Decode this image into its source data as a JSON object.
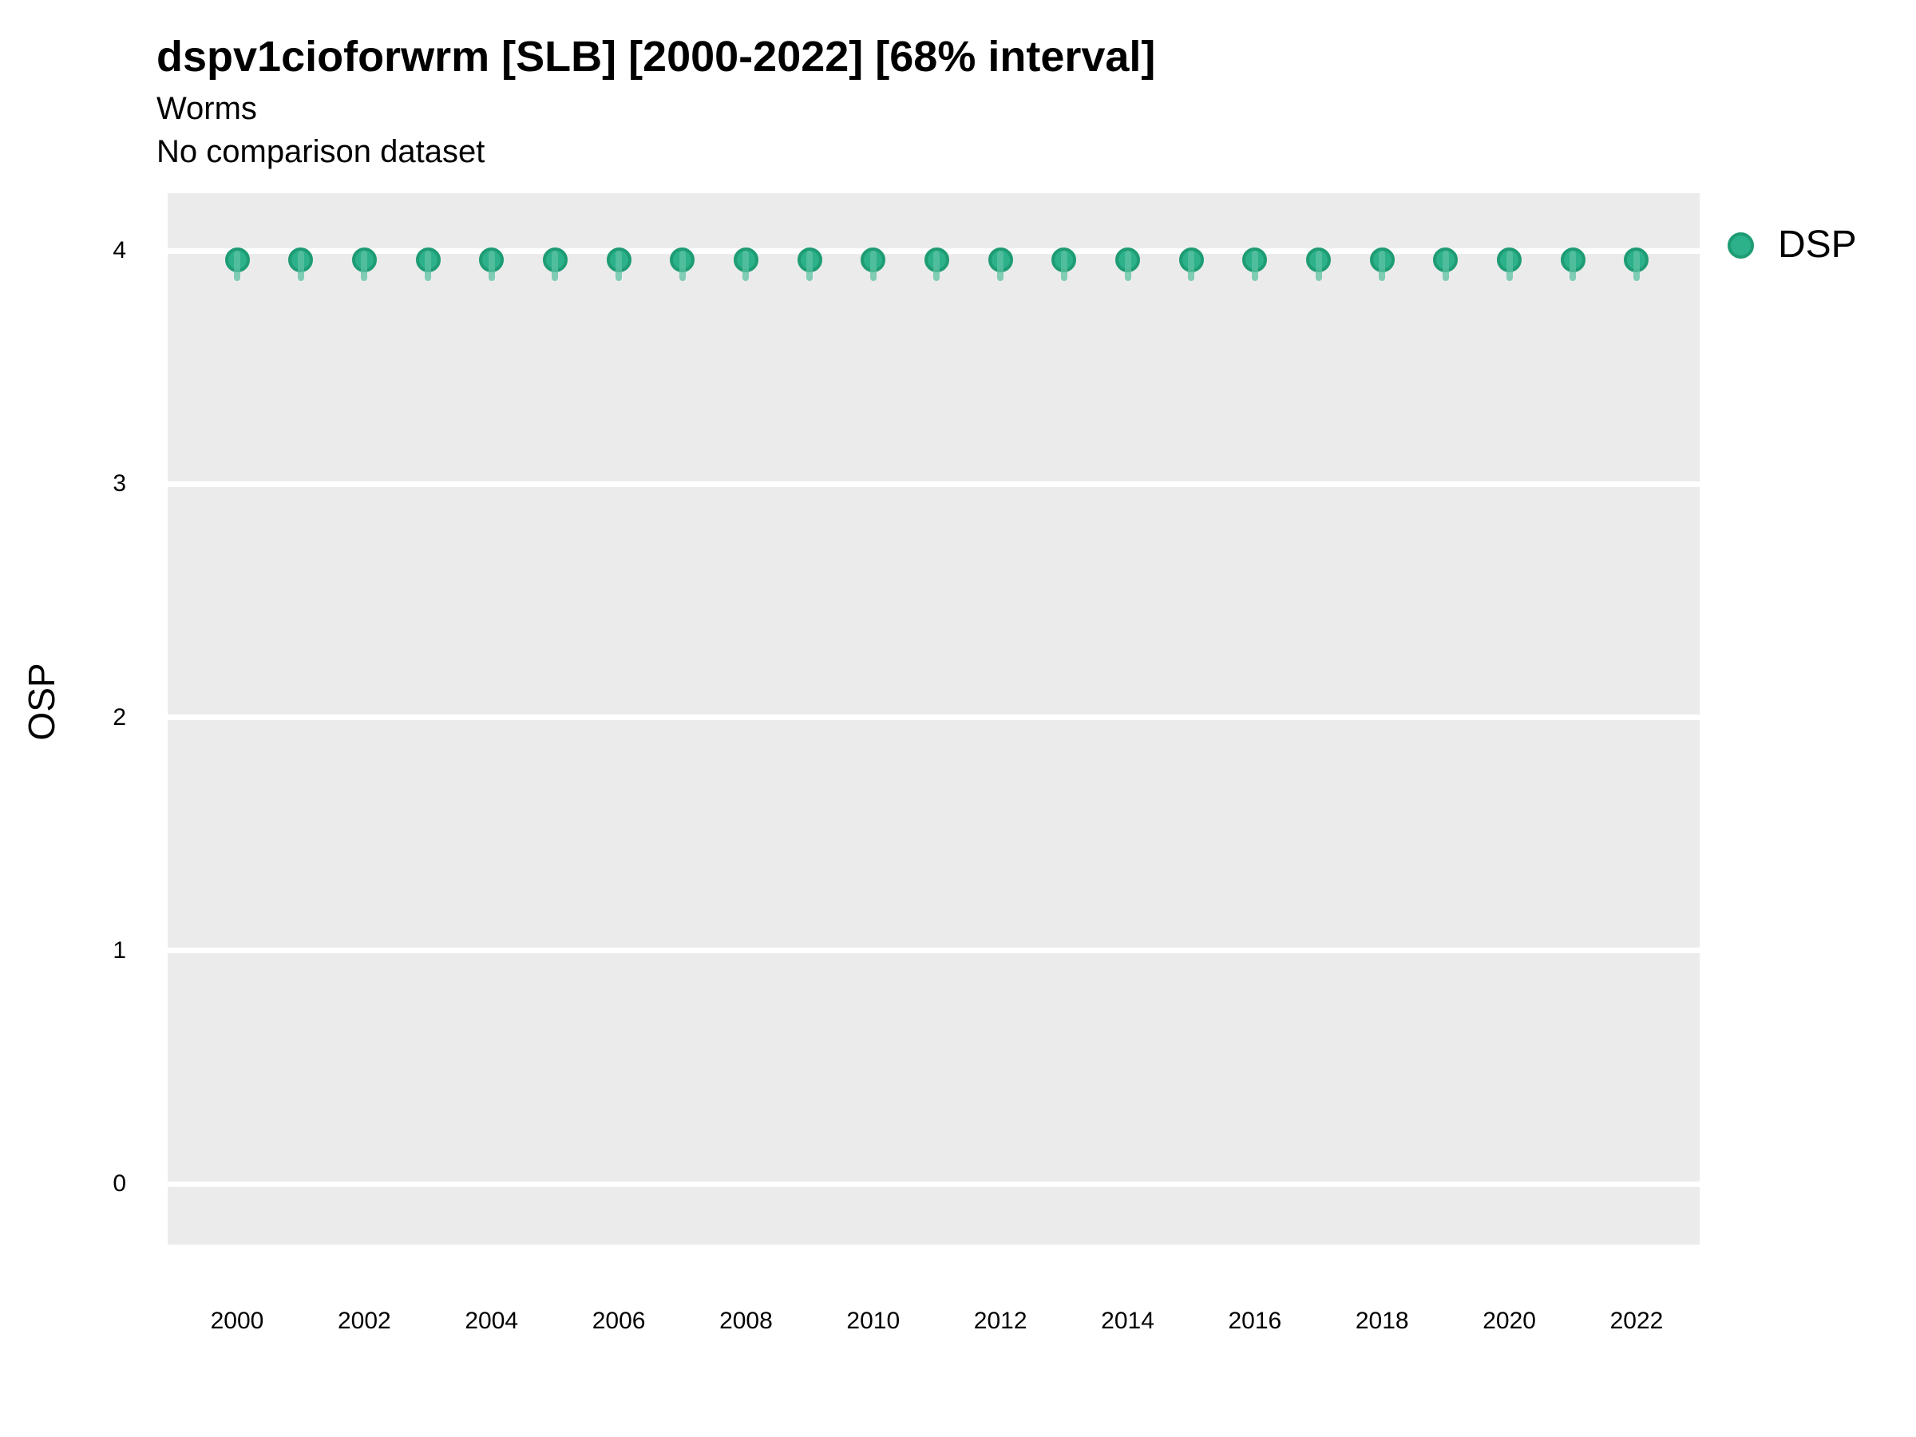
{
  "header": {
    "title": "dspv1cioforwrm [SLB] [2000-2022] [68% interval]",
    "subtitle": "Worms",
    "comparison_note": "No comparison dataset"
  },
  "colors": {
    "panel_bg": "#EBEBEB",
    "gridline": "#FFFFFF",
    "point_fill": "#2CB18A",
    "point_stroke": "#1E9C74",
    "interval_line": "rgba(92,194,161,0.75)",
    "text": "#000000"
  },
  "chart_data": {
    "type": "scatter",
    "title": "dspv1cioforwrm [SLB] [2000-2022] [68% interval]",
    "subtitle": "Worms",
    "annotation": "No comparison dataset",
    "xlabel": "",
    "ylabel": "OSP",
    "legend_position": "top-right",
    "grid": "horizontal-major-only",
    "x": [
      2000,
      2001,
      2002,
      2003,
      2004,
      2005,
      2006,
      2007,
      2008,
      2009,
      2010,
      2011,
      2012,
      2013,
      2014,
      2015,
      2016,
      2017,
      2018,
      2019,
      2020,
      2021,
      2022
    ],
    "series": [
      {
        "name": "DSP",
        "values": [
          3.96,
          3.96,
          3.96,
          3.96,
          3.96,
          3.96,
          3.96,
          3.96,
          3.96,
          3.96,
          3.96,
          3.96,
          3.96,
          3.96,
          3.96,
          3.96,
          3.96,
          3.96,
          3.96,
          3.96,
          3.96,
          3.96,
          3.96
        ],
        "interval_low": [
          3.87,
          3.87,
          3.87,
          3.87,
          3.87,
          3.87,
          3.87,
          3.87,
          3.87,
          3.87,
          3.87,
          3.87,
          3.87,
          3.87,
          3.87,
          3.87,
          3.87,
          3.87,
          3.87,
          3.87,
          3.87,
          3.87,
          3.87
        ],
        "interval_high": [
          4.0,
          4.0,
          4.0,
          4.0,
          4.0,
          4.0,
          4.0,
          4.0,
          4.0,
          4.0,
          4.0,
          4.0,
          4.0,
          4.0,
          4.0,
          4.0,
          4.0,
          4.0,
          4.0,
          4.0,
          4.0,
          4.0,
          4.0
        ],
        "interval_label": "68% interval"
      }
    ],
    "ylim": [
      -0.26,
      4.25
    ],
    "xlim": [
      1998.9,
      2023.1
    ],
    "yticks": [
      0,
      1,
      2,
      3,
      4
    ],
    "xticks": [
      2000,
      2002,
      2004,
      2006,
      2008,
      2010,
      2012,
      2014,
      2016,
      2018,
      2020,
      2022
    ]
  }
}
